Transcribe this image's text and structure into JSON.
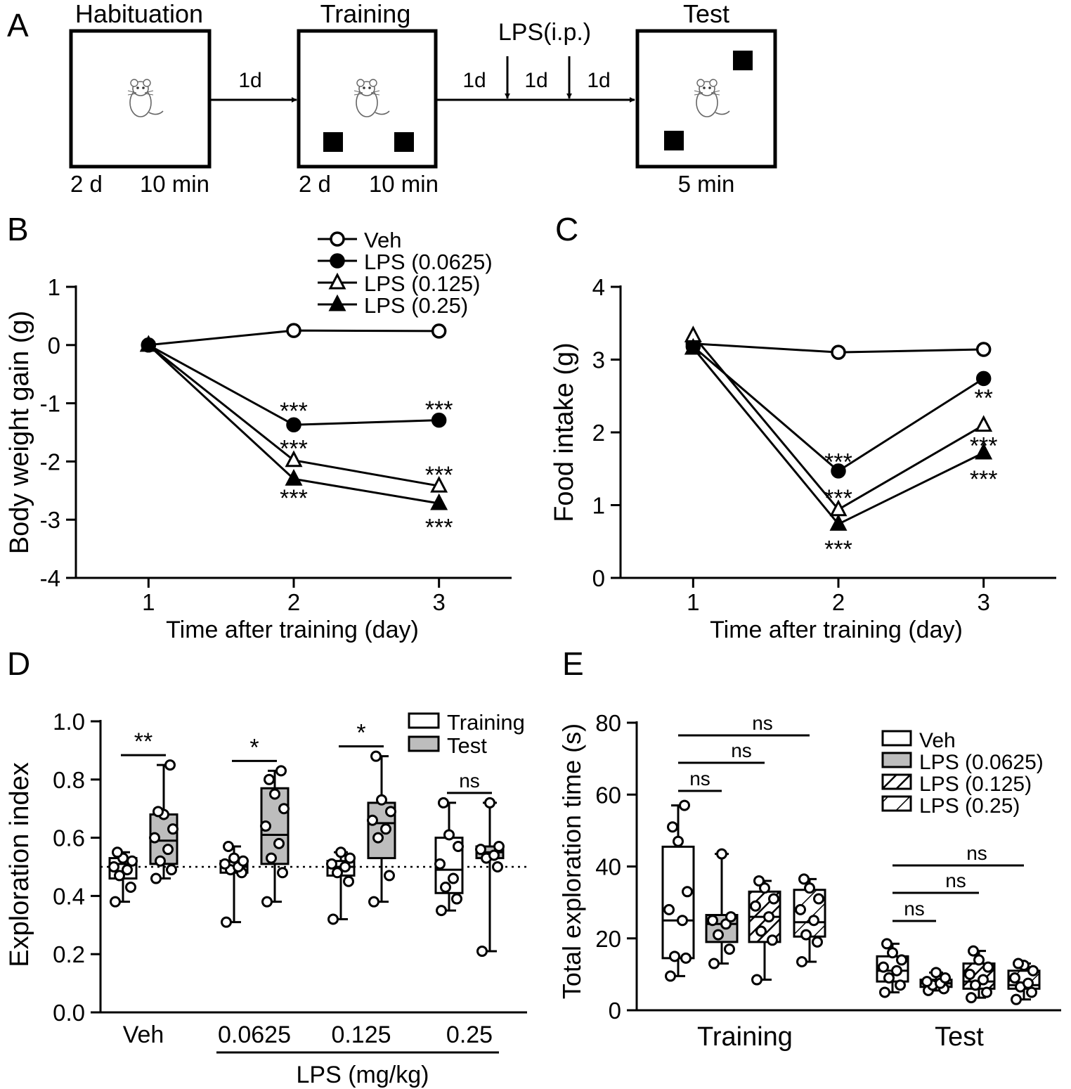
{
  "panels": {
    "A": {
      "letter": "A",
      "phases": [
        {
          "name": "Habituation",
          "left": "2 d",
          "right": "10 min"
        },
        {
          "name": "Training",
          "left": "2 d",
          "right": "10 min"
        },
        {
          "name": "Test",
          "left": "",
          "right": "5 min"
        }
      ],
      "gap1": "1d",
      "gap2": [
        "1d",
        "1d",
        "1d"
      ],
      "injection": "LPS(i.p.)"
    },
    "B": {
      "letter": "B"
    },
    "C": {
      "letter": "C"
    },
    "D": {
      "letter": "D"
    },
    "E": {
      "letter": "E"
    }
  },
  "chart_data": [
    {
      "panel": "B",
      "type": "line",
      "x": [
        1,
        2,
        3
      ],
      "xlabel": "Time after training (day)",
      "ylabel": "Body weight gain (g)",
      "xlim": [
        0.5,
        3.5
      ],
      "ylim": [
        -4,
        1
      ],
      "yticks": [
        1,
        0,
        -1,
        -2,
        -3,
        -4
      ],
      "legend_position": "top-center",
      "series": [
        {
          "name": "Veh",
          "marker": "circle-open",
          "values": [
            0,
            0.25,
            0.24
          ]
        },
        {
          "name": "LPS (0.0625)",
          "marker": "circle-filled",
          "values": [
            0,
            -1.37,
            -1.29
          ]
        },
        {
          "name": "LPS (0.125)",
          "marker": "triangle-open",
          "values": [
            0,
            -1.98,
            -2.42
          ]
        },
        {
          "name": "LPS (0.25)",
          "marker": "triangle-filled",
          "values": [
            0,
            -2.3,
            -2.72
          ]
        }
      ],
      "annotations": [
        {
          "x": 2,
          "y": -1.1,
          "text": "***"
        },
        {
          "x": 2,
          "y": -1.75,
          "text": "***"
        },
        {
          "x": 2,
          "y": -2.6,
          "text": "***"
        },
        {
          "x": 3,
          "y": -1.08,
          "text": "***"
        },
        {
          "x": 3,
          "y": -2.2,
          "text": "***"
        },
        {
          "x": 3,
          "y": -3.1,
          "text": "***"
        }
      ]
    },
    {
      "panel": "C",
      "type": "line",
      "x": [
        1,
        2,
        3
      ],
      "xlabel": "Time after training (day)",
      "ylabel": "Food intake (g)",
      "xlim": [
        0.5,
        3.5
      ],
      "ylim": [
        0,
        4
      ],
      "yticks": [
        4,
        3,
        2,
        1,
        0
      ],
      "series": [
        {
          "name": "Veh",
          "marker": "circle-open",
          "values": [
            3.22,
            3.1,
            3.14
          ]
        },
        {
          "name": "LPS (0.0625)",
          "marker": "circle-filled",
          "values": [
            3.18,
            1.47,
            2.74
          ]
        },
        {
          "name": "LPS (0.125)",
          "marker": "triangle-open",
          "values": [
            3.33,
            0.94,
            2.1
          ]
        },
        {
          "name": "LPS (0.25)",
          "marker": "triangle-filled",
          "values": [
            3.16,
            0.74,
            1.72
          ]
        }
      ],
      "annotations": [
        {
          "x": 2,
          "y": 1.62,
          "text": "***"
        },
        {
          "x": 2,
          "y": 1.12,
          "text": "***"
        },
        {
          "x": 2,
          "y": 0.42,
          "text": "***"
        },
        {
          "x": 3,
          "y": 2.5,
          "text": "**"
        },
        {
          "x": 3,
          "y": 1.84,
          "text": "***"
        },
        {
          "x": 3,
          "y": 1.38,
          "text": "***"
        }
      ]
    },
    {
      "panel": "D",
      "type": "box",
      "ylabel": "Exploration index",
      "ylim": [
        0,
        1
      ],
      "yticks": [
        "1.0",
        "0.8",
        "0.6",
        "0.4",
        "0.2",
        "0.0"
      ],
      "categories": [
        "Veh",
        "0.0625",
        "0.125",
        "0.25"
      ],
      "group_label": "LPS (mg/kg)",
      "reference_line": 0.5,
      "legend": [
        {
          "name": "Training",
          "fill": "#ffffff"
        },
        {
          "name": "Test",
          "fill": "#bdbdbd"
        }
      ],
      "boxes": [
        {
          "category": "Veh",
          "series": "Training",
          "min": 0.38,
          "q1": 0.46,
          "median": 0.51,
          "q3": 0.53,
          "max": 0.55,
          "points": [
            0.38,
            0.43,
            0.47,
            0.49,
            0.5,
            0.52,
            0.53,
            0.55
          ]
        },
        {
          "category": "Veh",
          "series": "Test",
          "min": 0.46,
          "q1": 0.51,
          "median": 0.59,
          "q3": 0.68,
          "max": 0.85,
          "points": [
            0.46,
            0.49,
            0.52,
            0.56,
            0.6,
            0.63,
            0.68,
            0.69,
            0.85
          ]
        },
        {
          "category": "0.0625",
          "series": "Training",
          "min": 0.31,
          "q1": 0.48,
          "median": 0.5,
          "q3": 0.52,
          "max": 0.57,
          "points": [
            0.31,
            0.48,
            0.49,
            0.5,
            0.51,
            0.52,
            0.53,
            0.57
          ]
        },
        {
          "category": "0.0625",
          "series": "Test",
          "min": 0.38,
          "q1": 0.51,
          "median": 0.61,
          "q3": 0.77,
          "max": 0.83,
          "points": [
            0.38,
            0.48,
            0.53,
            0.58,
            0.64,
            0.7,
            0.75,
            0.8,
            0.83
          ]
        },
        {
          "category": "0.125",
          "series": "Training",
          "min": 0.32,
          "q1": 0.47,
          "median": 0.5,
          "q3": 0.52,
          "max": 0.55,
          "points": [
            0.32,
            0.45,
            0.48,
            0.5,
            0.51,
            0.53,
            0.55
          ]
        },
        {
          "category": "0.125",
          "series": "Test",
          "min": 0.38,
          "q1": 0.53,
          "median": 0.65,
          "q3": 0.72,
          "max": 0.88,
          "points": [
            0.38,
            0.47,
            0.6,
            0.63,
            0.66,
            0.69,
            0.73,
            0.88
          ]
        },
        {
          "category": "0.25",
          "series": "Training",
          "min": 0.35,
          "q1": 0.41,
          "median": 0.49,
          "q3": 0.6,
          "max": 0.72,
          "points": [
            0.35,
            0.39,
            0.43,
            0.46,
            0.51,
            0.57,
            0.61,
            0.72
          ]
        },
        {
          "category": "0.25",
          "series": "Test",
          "min": 0.21,
          "q1": 0.53,
          "median": 0.55,
          "q3": 0.57,
          "max": 0.72,
          "points": [
            0.21,
            0.5,
            0.53,
            0.54,
            0.56,
            0.57,
            0.72
          ]
        }
      ],
      "significance": [
        {
          "category": "Veh",
          "text": "**"
        },
        {
          "category": "0.0625",
          "text": "*"
        },
        {
          "category": "0.125",
          "text": "*"
        },
        {
          "category": "0.25",
          "text": "ns"
        }
      ]
    },
    {
      "panel": "E",
      "type": "box",
      "ylabel": "Total exploration time (s)",
      "ylim": [
        0,
        80
      ],
      "yticks": [
        80,
        60,
        40,
        20,
        0
      ],
      "categories": [
        "Training",
        "Test"
      ],
      "legend": [
        {
          "name": "Veh",
          "pattern": "none"
        },
        {
          "name": "LPS (0.0625)",
          "pattern": "gray"
        },
        {
          "name": "LPS (0.125)",
          "pattern": "hatch-dense"
        },
        {
          "name": "LPS (0.25)",
          "pattern": "hatch-sparse"
        }
      ],
      "boxes": [
        {
          "category": "Training",
          "series": "Veh",
          "min": 9.5,
          "q1": 14.5,
          "median": 25,
          "q3": 45.5,
          "max": 57,
          "points": [
            9.5,
            14.5,
            15,
            25,
            28,
            33,
            47,
            51,
            57
          ]
        },
        {
          "category": "Training",
          "series": "LPS (0.0625)",
          "min": 13,
          "q1": 19,
          "median": 24,
          "q3": 26.5,
          "max": 43.5,
          "points": [
            13,
            17,
            21,
            24,
            25,
            26,
            43.5
          ]
        },
        {
          "category": "Training",
          "series": "LPS (0.125)",
          "min": 8.5,
          "q1": 19,
          "median": 26,
          "q3": 33,
          "max": 36,
          "points": [
            8.5,
            19.5,
            22,
            26,
            29,
            31,
            34,
            36
          ]
        },
        {
          "category": "Training",
          "series": "LPS (0.25)",
          "min": 13.5,
          "q1": 20.5,
          "median": 24.5,
          "q3": 33.5,
          "max": 36.5,
          "points": [
            13.5,
            19,
            21,
            25,
            28,
            31,
            34,
            36.5
          ]
        },
        {
          "category": "Test",
          "series": "Veh",
          "min": 5,
          "q1": 8,
          "median": 11,
          "q3": 15,
          "max": 18.5,
          "points": [
            5,
            7,
            9,
            11,
            12,
            14,
            16,
            18.5
          ]
        },
        {
          "category": "Test",
          "series": "LPS (0.0625)",
          "min": 5.5,
          "q1": 6.5,
          "median": 7.5,
          "q3": 8.5,
          "max": 10.5,
          "points": [
            5.5,
            6,
            7,
            7.5,
            8,
            9,
            10.5
          ]
        },
        {
          "category": "Test",
          "series": "LPS (0.125)",
          "min": 3.5,
          "q1": 6,
          "median": 8,
          "q3": 13,
          "max": 16.5,
          "points": [
            3.5,
            5,
            7,
            8.5,
            10,
            12,
            14,
            16.5
          ]
        },
        {
          "category": "Test",
          "series": "LPS (0.25)",
          "min": 3,
          "q1": 6,
          "median": 7,
          "q3": 11,
          "max": 13,
          "points": [
            3,
            5,
            6.5,
            7.5,
            9,
            11,
            12.5,
            13
          ]
        }
      ],
      "comparisons": [
        {
          "category": "Training",
          "to_series": "LPS (0.0625)",
          "text": "ns"
        },
        {
          "category": "Training",
          "to_series": "LPS (0.125)",
          "text": "ns"
        },
        {
          "category": "Training",
          "to_series": "LPS (0.25)",
          "text": "ns"
        },
        {
          "category": "Test",
          "to_series": "LPS (0.0625)",
          "text": "ns"
        },
        {
          "category": "Test",
          "to_series": "LPS (0.125)",
          "text": "ns"
        },
        {
          "category": "Test",
          "to_series": "LPS (0.25)",
          "text": "ns"
        }
      ]
    }
  ]
}
